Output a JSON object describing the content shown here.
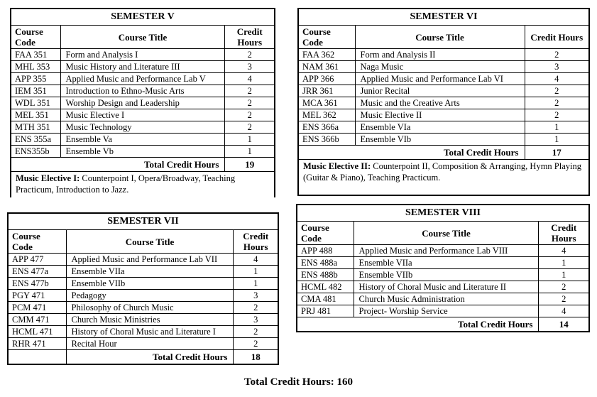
{
  "page": {
    "background_color": "#ffffff",
    "text_color": "#000000",
    "border_color": "#000000"
  },
  "footer": {
    "total_label": "Total Credit Hours: 160"
  },
  "tables": [
    {
      "id": "semester-5",
      "title": "SEMESTER V",
      "columns": {
        "code": "Course Code",
        "title": "Course Title",
        "hours": "Credit Hours"
      },
      "rows": [
        {
          "code": "FAA 351",
          "title": "Form and Analysis I",
          "hours": "2"
        },
        {
          "code": "MHL 353",
          "title": "Music History and Literature III",
          "hours": "3"
        },
        {
          "code": "APP 355",
          "title": "Applied Music and Performance Lab V",
          "hours": "4"
        },
        {
          "code": "IEM 351",
          "title": "Introduction to Ethno-Music Arts",
          "hours": "2"
        },
        {
          "code": "WDL 351",
          "title": "Worship Design and Leadership",
          "hours": "2"
        },
        {
          "code": "MEL 351",
          "title": "Music Elective I",
          "hours": "2"
        },
        {
          "code": "MTH 351",
          "title": "Music Technology",
          "hours": "2"
        },
        {
          "code": "ENS 355a",
          "title": "Ensemble Va",
          "hours": "1"
        },
        {
          "code": "ENS355b",
          "title": "Ensemble Vb",
          "hours": "1"
        }
      ],
      "total_label": "Total Credit Hours",
      "total_value": "19",
      "total_row_split": false,
      "note_lead": "Music Elective I:",
      "note_text": " Counterpoint I, Opera/Broadway, Teaching Practicum, Introduction to Jazz."
    },
    {
      "id": "semester-6",
      "title": "SEMESTER VI",
      "columns": {
        "code": "Course Code",
        "title": "Course Title",
        "hours": "Credit Hours"
      },
      "rows": [
        {
          "code": "FAA 362",
          "title": "Form and Analysis II",
          "hours": "2"
        },
        {
          "code": "NAM 361",
          "title": "Naga Music",
          "hours": "3"
        },
        {
          "code": "APP 366",
          "title": "Applied Music and Performance Lab VI",
          "hours": "4"
        },
        {
          "code": "JRR 361",
          "title": "Junior Recital",
          "hours": "2"
        },
        {
          "code": "MCA 361",
          "title": "Music and the Creative Arts",
          "hours": "2"
        },
        {
          "code": "MEL 362",
          "title": "Music Elective II",
          "hours": "2"
        },
        {
          "code": "ENS 366a",
          "title": "Ensemble VIa",
          "hours": "1"
        },
        {
          "code": "ENS 366b",
          "title": "Ensemble VIb",
          "hours": "1"
        }
      ],
      "total_label": "Total Credit Hours",
      "total_value": "17",
      "total_row_split": false,
      "note_lead": "Music Elective II:",
      "note_text": " Counterpoint II, Composition & Arranging, Hymn Playing (Guitar & Piano), Teaching Practicum."
    },
    {
      "id": "semester-7",
      "title": "SEMESTER VII",
      "columns": {
        "code": "Course Code",
        "title": "Course Title",
        "hours": "Credit Hours"
      },
      "rows": [
        {
          "code": "APP 477",
          "title": "Applied Music and Performance Lab VII",
          "hours": "4"
        },
        {
          "code": "ENS 477a",
          "title": "Ensemble VIIa",
          "hours": "1"
        },
        {
          "code": "ENS 477b",
          "title": "Ensemble VIIb",
          "hours": "1"
        },
        {
          "code": "PGY 471",
          "title": "Pedagogy",
          "hours": "3"
        },
        {
          "code": "PCM 471",
          "title": "Philosophy of Church Music",
          "hours": "2"
        },
        {
          "code": "CMM 471",
          "title": "Church Music Ministries",
          "hours": "3"
        },
        {
          "code": "HCML 471",
          "title": "History of Choral Music and Literature I",
          "hours": "2"
        },
        {
          "code": "RHR 471",
          "title": "Recital Hour",
          "hours": "2"
        }
      ],
      "total_label": "Total Credit Hours",
      "total_value": "18",
      "total_row_split": true
    },
    {
      "id": "semester-8",
      "title": "SEMESTER VIII",
      "columns": {
        "code": "Course Code",
        "title": "Course Title",
        "hours": "Credit Hours"
      },
      "rows": [
        {
          "code": "APP 488",
          "title": "Applied Music and Performance Lab VIII",
          "hours": "4"
        },
        {
          "code": "ENS 488a",
          "title": "Ensemble VIIa",
          "hours": "1"
        },
        {
          "code": "ENS 488b",
          "title": "Ensemble VIIb",
          "hours": "1"
        },
        {
          "code": "HCML 482",
          "title": "History of Choral Music and Literature II",
          "hours": "2"
        },
        {
          "code": "CMA 481",
          "title": "Church Music Administration",
          "hours": "2"
        },
        {
          "code": "PRJ 481",
          "title": "Project- Worship Service",
          "hours": "4"
        }
      ],
      "total_label": "Total Credit Hours",
      "total_value": "14",
      "total_row_split": false
    }
  ]
}
